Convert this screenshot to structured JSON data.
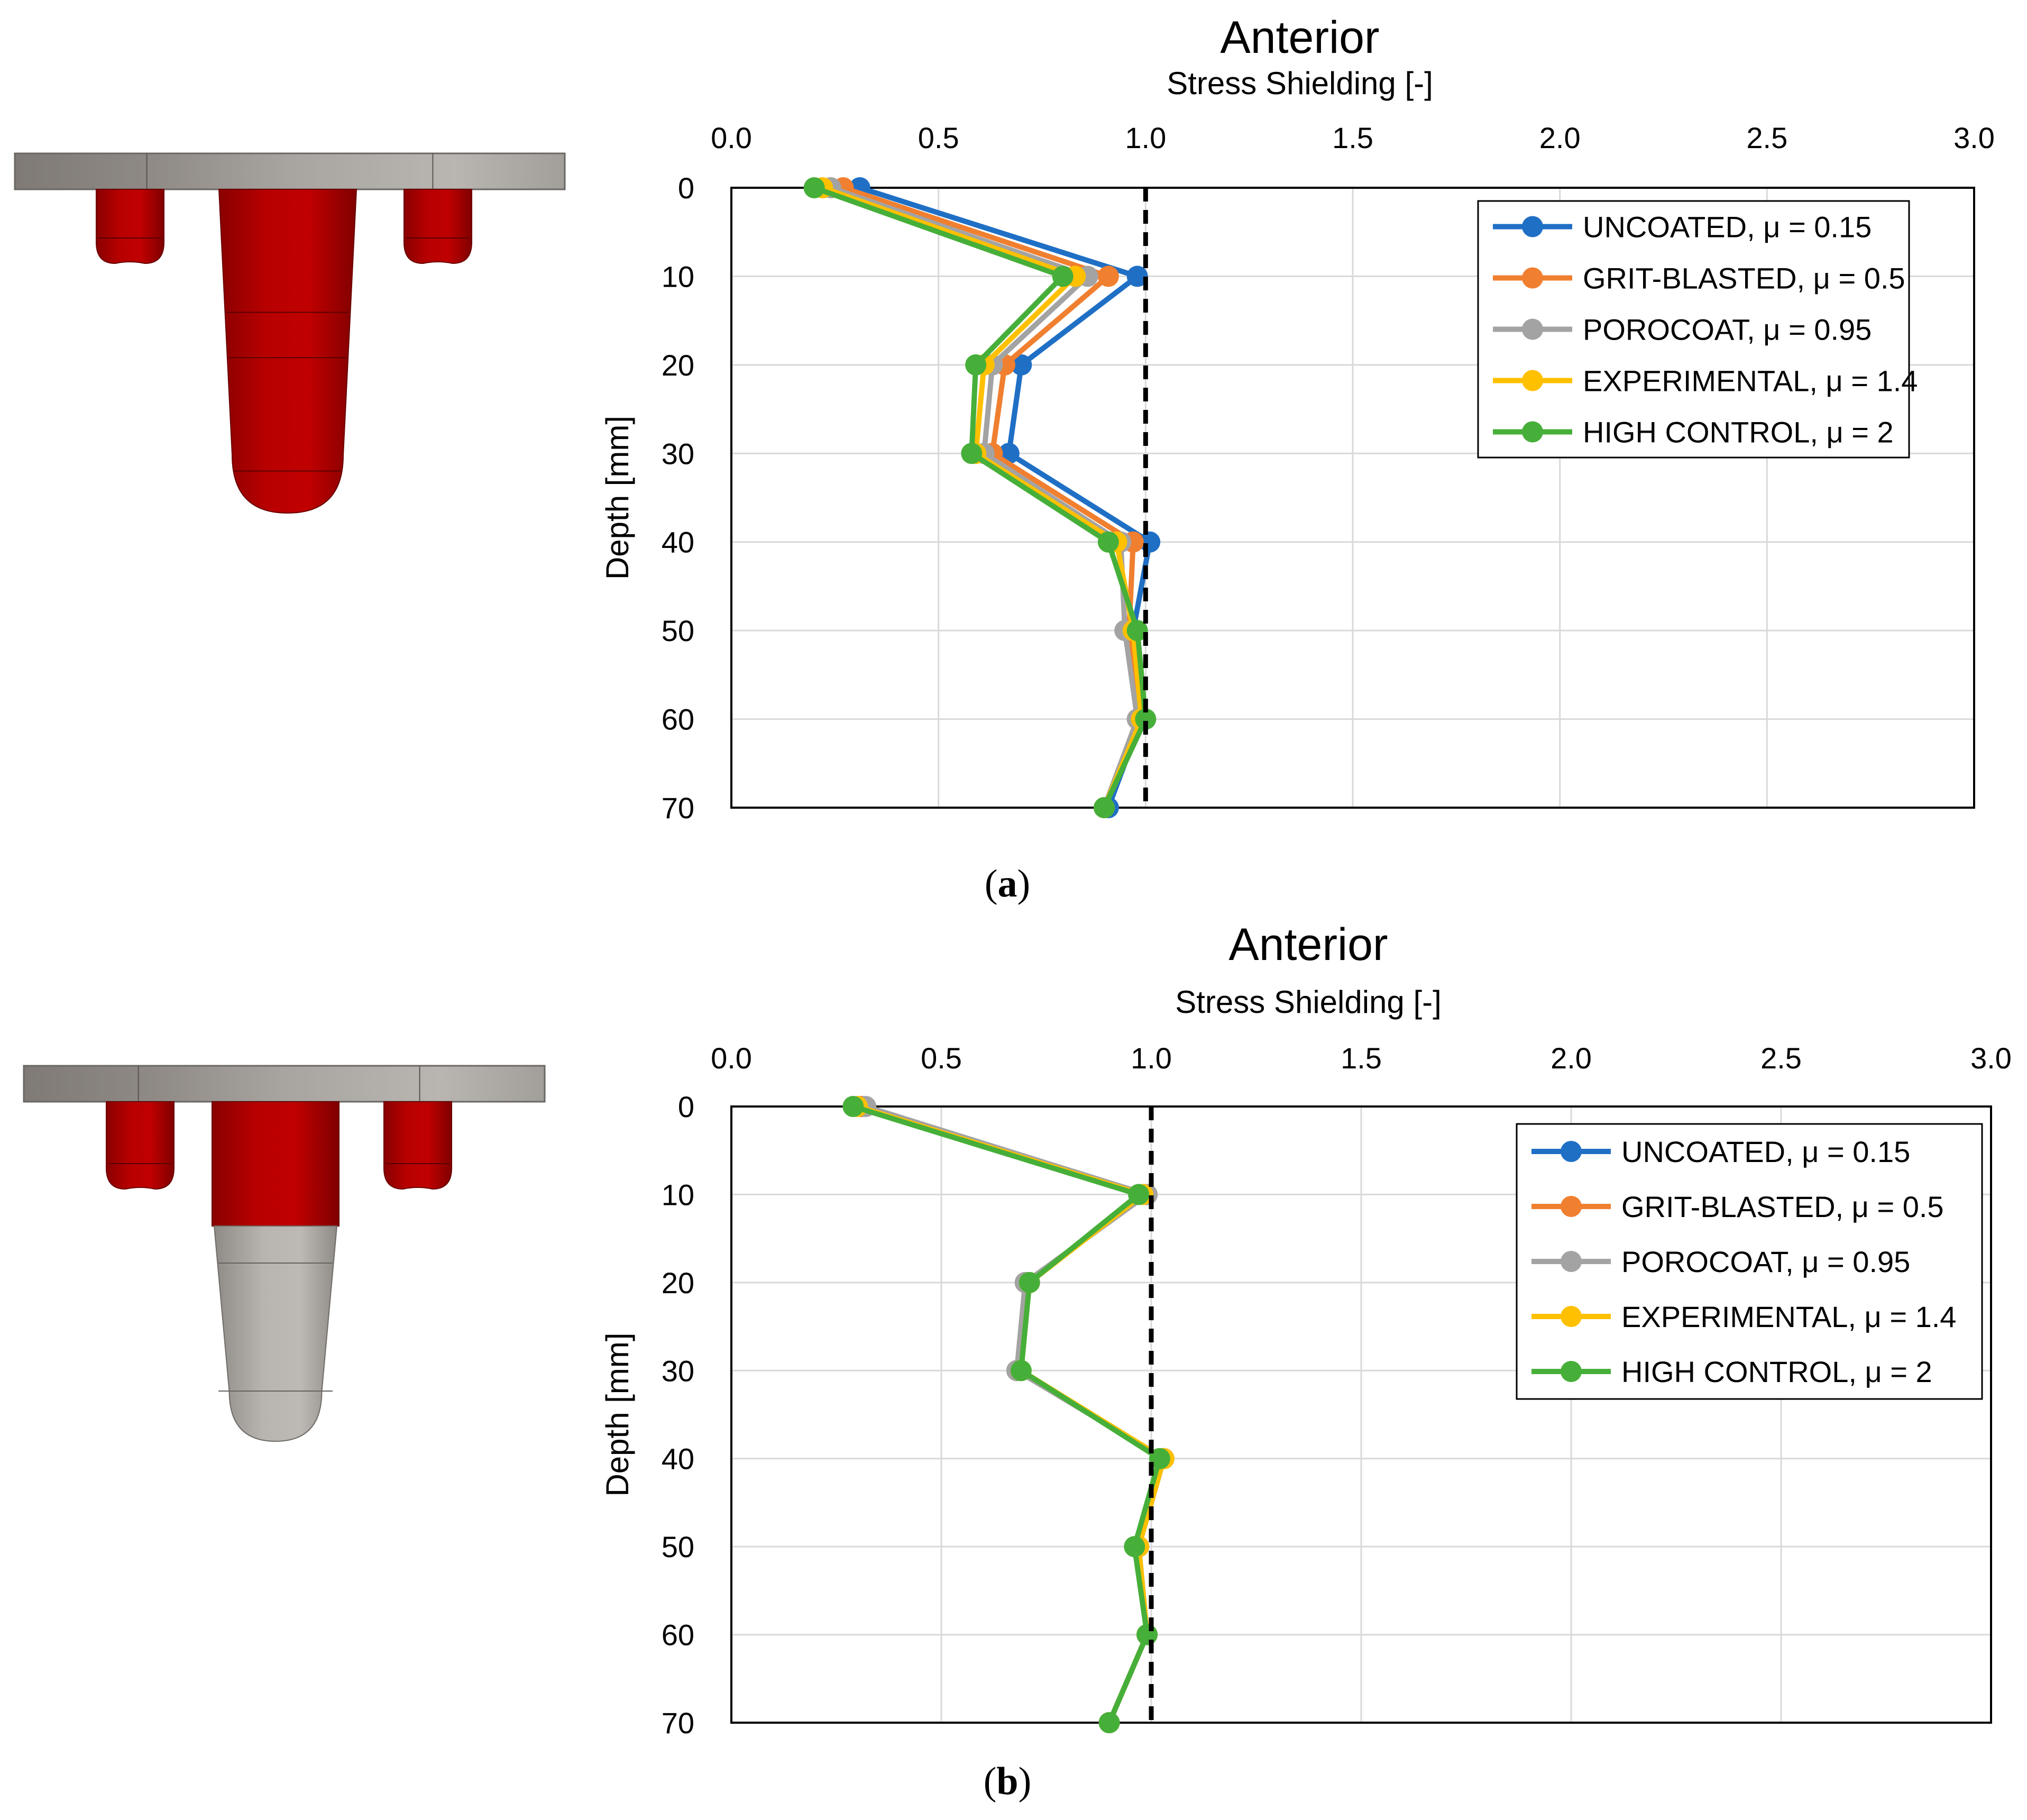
{
  "colors": {
    "uncoated": "#1F6FC5",
    "grit_blasted": "#F07F30",
    "porocoat": "#A3A3A3",
    "experimental": "#FFC000",
    "high_control": "#46AF39",
    "implant_red": "#B50000",
    "implant_grey": "#B2ADA9",
    "grid": "#d9d9d9",
    "reference_line": "#000000"
  },
  "panels": [
    {
      "label_open": "(",
      "label_letter": "a",
      "label_close": ")",
      "illustration": {
        "stem_color": "red",
        "caption": ""
      }
    },
    {
      "label_open": "(",
      "label_letter": "b",
      "label_close": ")",
      "illustration": {
        "stem_color": "grey",
        "caption": ""
      }
    }
  ],
  "chart_data": [
    {
      "type": "line",
      "title": "Anterior",
      "xlabel": "Stress Shielding [-]",
      "ylabel": "Depth [mm]",
      "xlim": [
        0,
        3
      ],
      "ylim": [
        0,
        70
      ],
      "y_inverted": true,
      "x_axis_position": "top",
      "xticks": [
        "0.0",
        "0.5",
        "1.0",
        "1.5",
        "2.0",
        "2.5",
        "3.0"
      ],
      "yticks": [
        "0",
        "10",
        "20",
        "30",
        "40",
        "50",
        "60",
        "70"
      ],
      "grid": true,
      "legend_position": "top-right",
      "reference_line": {
        "x": 1.0,
        "style": "dashed"
      },
      "depth": [
        0,
        10,
        20,
        30,
        40,
        50,
        60,
        70
      ],
      "series": [
        {
          "name": "UNCOATED, μ = 0.15",
          "color_key": "uncoated",
          "values": [
            0.31,
            0.98,
            0.7,
            0.67,
            1.01,
            0.97,
            0.99,
            0.91
          ]
        },
        {
          "name": "GRIT-BLASTED, μ = 0.5",
          "color_key": "grit_blasted",
          "values": [
            0.27,
            0.91,
            0.66,
            0.63,
            0.97,
            0.96,
            0.98,
            0.9
          ]
        },
        {
          "name": "POROCOAT, μ = 0.95",
          "color_key": "porocoat",
          "values": [
            0.24,
            0.86,
            0.63,
            0.61,
            0.94,
            0.95,
            0.98,
            0.9
          ]
        },
        {
          "name": "EXPERIMENTAL, μ = 1.4",
          "color_key": "experimental",
          "values": [
            0.22,
            0.83,
            0.61,
            0.59,
            0.93,
            0.97,
            0.99,
            0.9
          ]
        },
        {
          "name": "HIGH CONTROL, μ = 2",
          "color_key": "high_control",
          "values": [
            0.2,
            0.8,
            0.59,
            0.58,
            0.91,
            0.98,
            1.0,
            0.9
          ]
        }
      ]
    },
    {
      "type": "line",
      "title": "Anterior",
      "xlabel": "Stress Shielding [-]",
      "ylabel": "Depth [mm]",
      "xlim": [
        0,
        3
      ],
      "ylim": [
        0,
        70
      ],
      "y_inverted": true,
      "x_axis_position": "top",
      "xticks": [
        "0.0",
        "0.5",
        "1.0",
        "1.5",
        "2.0",
        "2.5",
        "3.0"
      ],
      "yticks": [
        "0",
        "10",
        "20",
        "30",
        "40",
        "50",
        "60",
        "70"
      ],
      "grid": true,
      "legend_position": "top-right",
      "reference_line": {
        "x": 1.0,
        "style": "dashed"
      },
      "depth": [
        0,
        10,
        20,
        30,
        40,
        50,
        60,
        70
      ],
      "series": [
        {
          "name": "UNCOATED, μ = 0.15",
          "color_key": "uncoated",
          "values": [
            0.31,
            0.99,
            0.7,
            0.68,
            1.03,
            0.97,
            0.99,
            0.9
          ]
        },
        {
          "name": "GRIT-BLASTED, μ = 0.5",
          "color_key": "grit_blasted",
          "values": [
            0.31,
            0.99,
            0.7,
            0.68,
            1.03,
            0.97,
            0.99,
            0.9
          ]
        },
        {
          "name": "POROCOAT, μ = 0.95",
          "color_key": "porocoat",
          "values": [
            0.32,
            0.99,
            0.7,
            0.68,
            1.03,
            0.97,
            0.99,
            0.9
          ]
        },
        {
          "name": "EXPERIMENTAL, μ = 1.4",
          "color_key": "experimental",
          "values": [
            0.3,
            0.98,
            0.71,
            0.69,
            1.03,
            0.97,
            0.99,
            0.9
          ]
        },
        {
          "name": "HIGH CONTROL, μ = 2",
          "color_key": "high_control",
          "values": [
            0.29,
            0.97,
            0.71,
            0.69,
            1.02,
            0.96,
            0.99,
            0.9
          ]
        }
      ]
    }
  ]
}
